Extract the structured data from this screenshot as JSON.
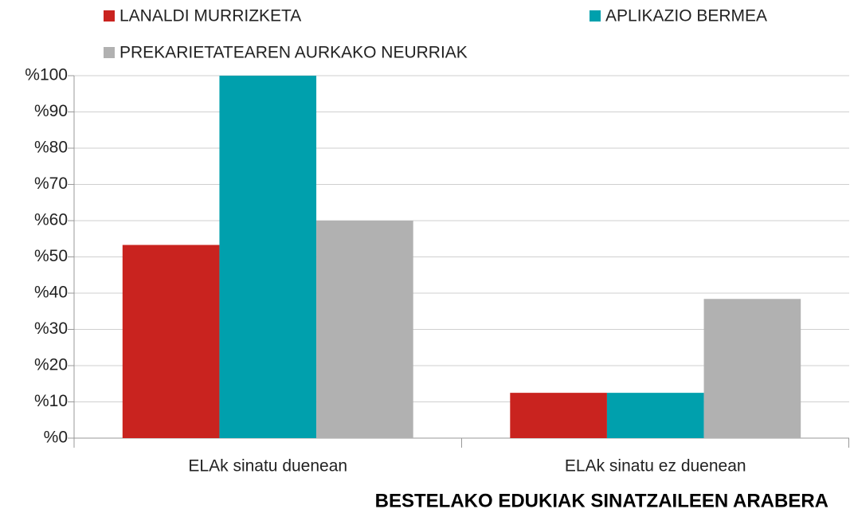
{
  "chart_data": {
    "type": "bar",
    "xlabel": "BESTELAKO EDUKIAK SINATZAILEEN ARABERA",
    "categories": [
      "ELAk sinatu duenean",
      "ELAk sinatu ez duenean"
    ],
    "series": [
      {
        "name": "LANALDI MURRIZKETA",
        "color": "#c9231f",
        "values": [
          53.3,
          12.5
        ]
      },
      {
        "name": "APLIKAZIO BERMEA",
        "color": "#00a0ad",
        "values": [
          100,
          12.5
        ]
      },
      {
        "name": "PREKARIETATEAREN AURKAKO NEURRIAK",
        "color": "#b1b1b1",
        "values": [
          60,
          38.4
        ]
      }
    ],
    "ylim": [
      0,
      100
    ],
    "yticks": [
      {
        "value": 0,
        "label": "%0"
      },
      {
        "value": 10,
        "label": "%10"
      },
      {
        "value": 20,
        "label": "%20"
      },
      {
        "value": 30,
        "label": "%30"
      },
      {
        "value": 40,
        "label": "%40"
      },
      {
        "value": 50,
        "label": "%50"
      },
      {
        "value": 60,
        "label": "%60"
      },
      {
        "value": 70,
        "label": "%70"
      },
      {
        "value": 80,
        "label": "%80"
      },
      {
        "value": 90,
        "label": "%90"
      },
      {
        "value": 100,
        "label": "%100"
      }
    ],
    "grid": true,
    "legend": "top"
  }
}
